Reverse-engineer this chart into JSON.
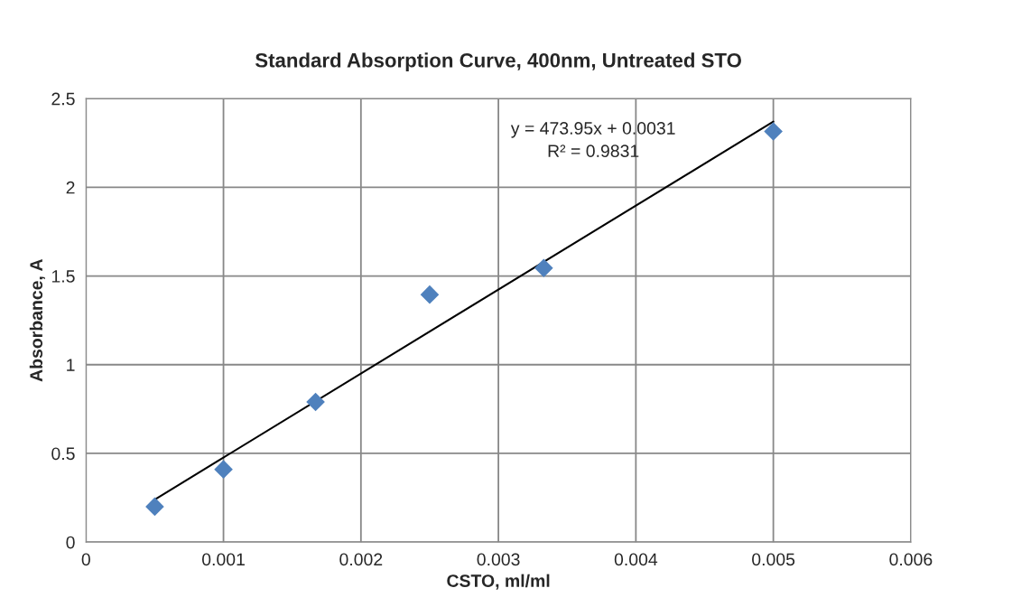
{
  "chart_data": {
    "type": "scatter",
    "title": "Standard Absorption Curve, 400nm, Untreated STO",
    "xlabel": "CSTO, ml/ml",
    "ylabel": "Absorbance, A",
    "x": [
      0.0005,
      0.001,
      0.00167,
      0.0025,
      0.00333,
      0.005
    ],
    "series": [
      {
        "color": "#4f81bd",
        "marker": "diamond",
        "values": [
          0.2,
          0.41,
          0.79,
          1.395,
          1.545,
          2.315
        ]
      },
      {
        "type": "line",
        "color": "#000000",
        "marker": "none",
        "line_style": "solid",
        "x": [
          0.0005,
          0.005
        ],
        "values": [
          0.24,
          2.37
        ]
      }
    ],
    "annotations": [
      "y = 473.95x + 0.0031\nR² = 0.9831"
    ],
    "xlim": [
      0,
      0.006
    ],
    "xticks": [
      0,
      0.001,
      0.002,
      0.003,
      0.004,
      0.005,
      0.006
    ],
    "ylim": [
      0,
      2.5
    ],
    "yticks": [
      0,
      0.5,
      1,
      1.5,
      2,
      2.5
    ],
    "grid": true
  }
}
